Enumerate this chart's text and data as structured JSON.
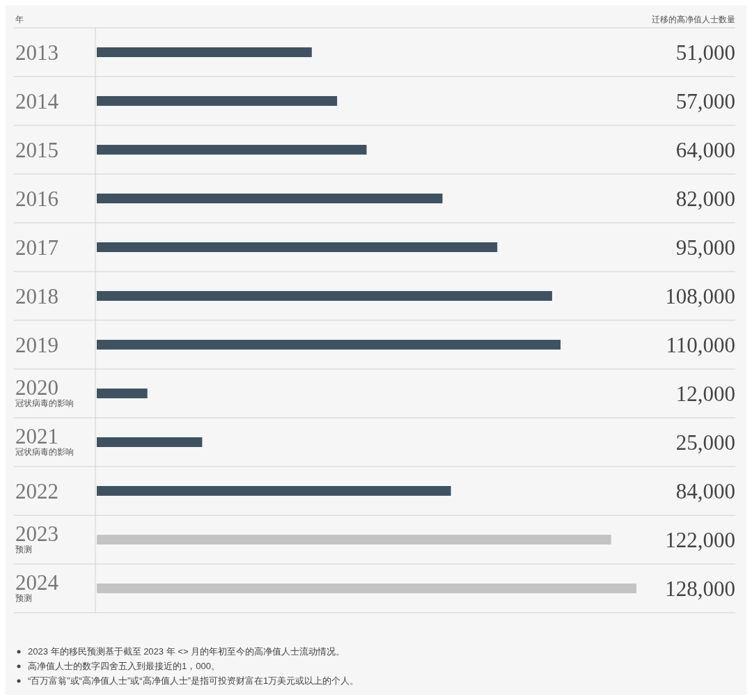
{
  "chart_data": {
    "type": "bar",
    "orientation": "horizontal",
    "ylabel": "年",
    "xlabel": "迁移的高净值人士数量",
    "categories": [
      "2013",
      "2014",
      "2015",
      "2016",
      "2017",
      "2018",
      "2019",
      "2020\n冠状病毒的影响",
      "2021\n冠状病毒的影响",
      "2022",
      "2023\n预测",
      "2024\n预测"
    ],
    "values": [
      51000,
      57000,
      64000,
      82000,
      95000,
      108000,
      110000,
      12000,
      25000,
      84000,
      122000,
      128000
    ],
    "colors": [
      "#3f5262",
      "#3f5262",
      "#3f5262",
      "#3f5262",
      "#3f5262",
      "#3f5262",
      "#3f5262",
      "#3f5262",
      "#3f5262",
      "#3f5262",
      "#c4c4c4",
      "#c4c4c4"
    ],
    "value_labels": [
      "51,000",
      "57,000",
      "64,000",
      "82,000",
      "95,000",
      "108,000",
      "110,000",
      "12,000",
      "25,000",
      "84,000",
      "122,000",
      "128,000"
    ],
    "tick_labels": "y",
    "annotations": [
      "2023 年的移民预测基于截至 2023 年 <> 月的年初至今的高净值人士流动情况。",
      "高净值人士的数字四舍五入到最接近的1，000。",
      "“百万富翁”或“高净值人士”或“高净值人士”是指可投资财富在1万美元或以上的个人。"
    ]
  }
}
